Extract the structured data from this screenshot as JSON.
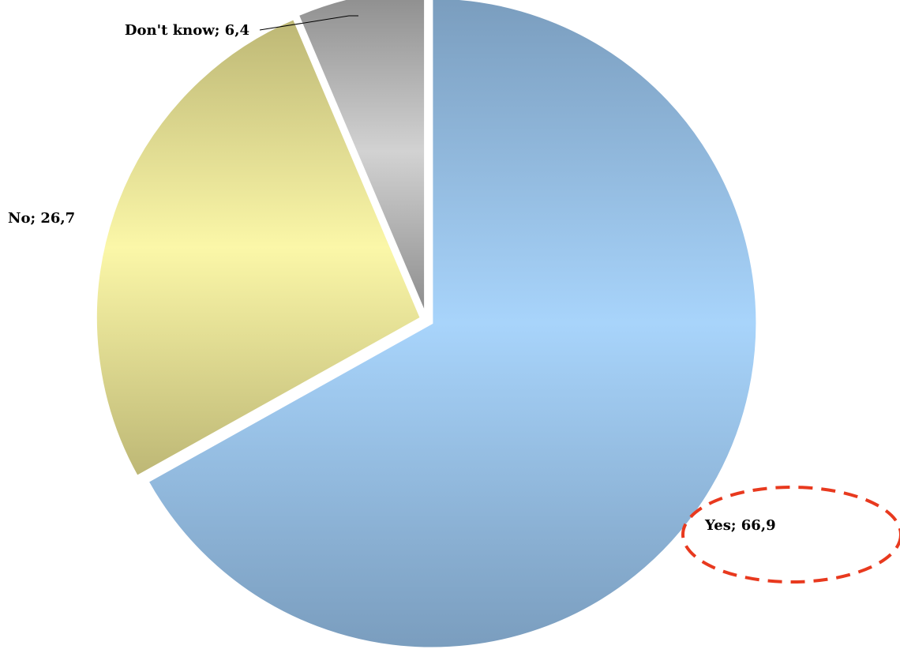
{
  "chart_data": {
    "type": "pie",
    "title": "",
    "slices": [
      {
        "label": "Yes",
        "value": 66.9,
        "data_label": "Yes; 66,9",
        "color": "#a8d4fb",
        "shade": "#7a9dbe"
      },
      {
        "label": "No",
        "value": 26.7,
        "data_label": "No; 26,7",
        "color": "#fbf7a8",
        "shade": "#bdb775"
      },
      {
        "label": "Don't know",
        "value": 6.4,
        "data_label": "Don't know; 6,4",
        "color": "#d2d2d2",
        "shade": "#8c8c8c"
      }
    ],
    "highlight": {
      "target": "Yes",
      "style": "dashed-ellipse",
      "color": "#e8391e"
    }
  }
}
